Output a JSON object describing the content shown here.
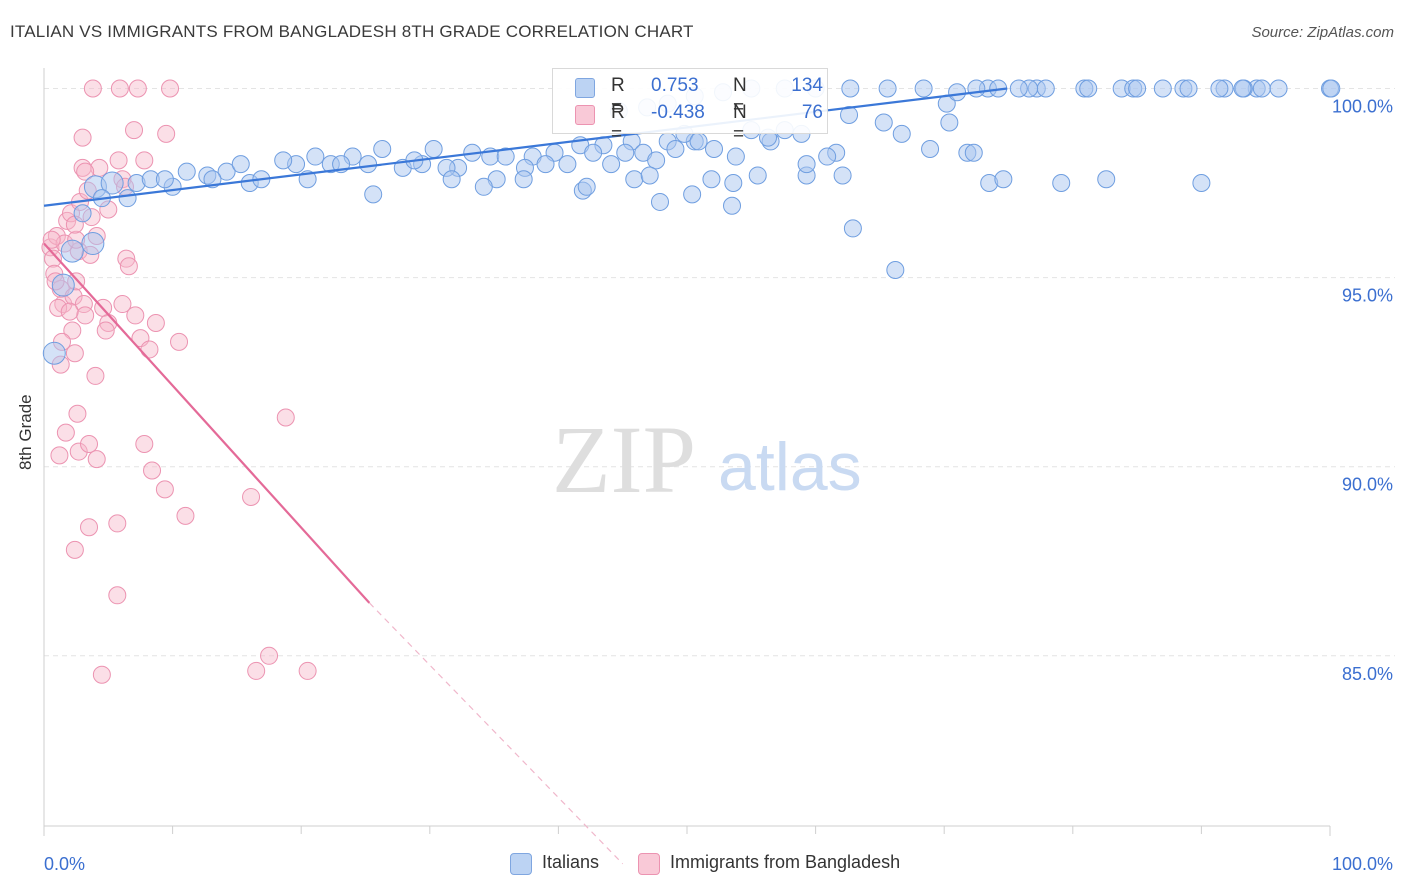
{
  "title": "ITALIAN VS IMMIGRANTS FROM BANGLADESH 8TH GRADE CORRELATION CHART",
  "source": "Source: ZipAtlas.com",
  "watermark": {
    "zip": "ZIP",
    "atlas": "atlas"
  },
  "legend": {
    "rows": [
      {
        "r_label": "R =",
        "r_value": "0.753",
        "n_label": "N =",
        "n_value": "134",
        "color": "#a9c6ef"
      },
      {
        "r_label": "R =",
        "r_value": "-0.438",
        "n_label": "N =",
        "n_value": "76",
        "color": "#f6b8c9"
      }
    ]
  },
  "bottom_legend": {
    "italians": "Italians",
    "bangladesh": "Immigrants from Bangladesh"
  },
  "chart_data": {
    "type": "scatter",
    "title": "ITALIAN VS IMMIGRANTS FROM BANGLADESH 8TH GRADE CORRELATION CHART",
    "xlabel": "",
    "ylabel": "8th Grade",
    "xlim": [
      0,
      100
    ],
    "ylim": [
      80.5,
      100.7
    ],
    "x_tick_labels": [
      "0.0%",
      "100.0%"
    ],
    "y_ticks": [
      85,
      90,
      95,
      100
    ],
    "y_tick_labels": [
      "85.0%",
      "90.0%",
      "95.0%",
      "100.0%"
    ],
    "grid": true,
    "colors": {
      "italians": "#3b78d8",
      "bangladesh": "#e46a98",
      "italians_fill": "#a9c6ef",
      "bangladesh_fill": "#f6b8c9"
    },
    "series": [
      {
        "name": "Italians",
        "trend": {
          "x": [
            0,
            74.9
          ],
          "y": [
            96.9,
            100.0
          ]
        },
        "points": [
          [
            0.8,
            93.0
          ],
          [
            1.5,
            94.8
          ],
          [
            2.2,
            95.7
          ],
          [
            3.8,
            95.9
          ],
          [
            4.0,
            97.4
          ],
          [
            5.3,
            97.5
          ],
          [
            7.2,
            97.5
          ],
          [
            10.0,
            97.4
          ],
          [
            12.7,
            97.7
          ],
          [
            14.2,
            97.8
          ],
          [
            16.0,
            97.5
          ],
          [
            19.6,
            98.0
          ],
          [
            20.5,
            97.6
          ],
          [
            21.1,
            98.2
          ],
          [
            24.0,
            98.2
          ],
          [
            25.2,
            98.0
          ],
          [
            27.9,
            97.9
          ],
          [
            29.4,
            98.0
          ],
          [
            32.2,
            97.9
          ],
          [
            34.7,
            98.2
          ],
          [
            35.9,
            98.2
          ],
          [
            38.0,
            98.2
          ],
          [
            39.7,
            98.3
          ],
          [
            41.7,
            98.5
          ],
          [
            43.5,
            98.5
          ],
          [
            45.7,
            98.6
          ],
          [
            46.6,
            98.3
          ],
          [
            48.5,
            98.6
          ],
          [
            49.1,
            98.4
          ],
          [
            50.6,
            98.6
          ],
          [
            52.1,
            98.4
          ],
          [
            53.8,
            98.2
          ],
          [
            4.5,
            97.1
          ],
          [
            8.3,
            97.6
          ],
          [
            9.4,
            97.6
          ],
          [
            11.1,
            97.8
          ],
          [
            13.1,
            97.6
          ],
          [
            15.3,
            98.0
          ],
          [
            16.9,
            97.6
          ],
          [
            18.6,
            98.1
          ],
          [
            22.3,
            98.0
          ],
          [
            23.1,
            98.0
          ],
          [
            26.3,
            98.4
          ],
          [
            28.8,
            98.1
          ],
          [
            30.3,
            98.4
          ],
          [
            31.3,
            97.9
          ],
          [
            33.3,
            98.3
          ],
          [
            35.2,
            97.6
          ],
          [
            37.4,
            97.9
          ],
          [
            39.0,
            98.0
          ],
          [
            40.7,
            98.0
          ],
          [
            42.7,
            98.3
          ],
          [
            44.1,
            98.0
          ],
          [
            45.2,
            98.3
          ],
          [
            47.6,
            98.1
          ],
          [
            49.8,
            98.8
          ],
          [
            50.9,
            98.6
          ],
          [
            55.0,
            98.9
          ],
          [
            56.5,
            98.6
          ],
          [
            57.6,
            98.9
          ],
          [
            58.9,
            98.8
          ],
          [
            61.6,
            98.3
          ],
          [
            71.8,
            98.3
          ],
          [
            3.0,
            96.7
          ],
          [
            6.5,
            97.1
          ],
          [
            25.6,
            97.2
          ],
          [
            31.7,
            97.6
          ],
          [
            34.2,
            97.4
          ],
          [
            37.3,
            97.6
          ],
          [
            41.9,
            97.3
          ],
          [
            42.2,
            97.4
          ],
          [
            45.9,
            97.6
          ],
          [
            47.1,
            97.7
          ],
          [
            47.9,
            97.0
          ],
          [
            53.6,
            97.5
          ],
          [
            59.3,
            97.7
          ],
          [
            62.1,
            97.7
          ],
          [
            73.5,
            97.5
          ],
          [
            74.6,
            97.6
          ],
          [
            79.1,
            97.5
          ],
          [
            82.6,
            97.6
          ],
          [
            90.0,
            97.5
          ],
          [
            53.5,
            96.9
          ],
          [
            62.9,
            96.3
          ],
          [
            66.2,
            95.2
          ],
          [
            70.2,
            99.6
          ],
          [
            71.0,
            99.9
          ],
          [
            73.4,
            100.0
          ],
          [
            74.2,
            100.0
          ],
          [
            77.2,
            100.0
          ],
          [
            77.9,
            100.0
          ],
          [
            80.9,
            100.0
          ],
          [
            83.8,
            100.0
          ],
          [
            84.7,
            100.0
          ],
          [
            88.6,
            100.0
          ],
          [
            89.0,
            100.0
          ],
          [
            91.8,
            100.0
          ],
          [
            94.3,
            100.0
          ],
          [
            94.7,
            100.0
          ],
          [
            96.0,
            100.0
          ],
          [
            100.0,
            100.0
          ],
          [
            100.1,
            100.0
          ],
          [
            93.3,
            100.0
          ],
          [
            93.2,
            100.0
          ],
          [
            91.4,
            100.0
          ],
          [
            87.0,
            100.0
          ],
          [
            85.0,
            100.0
          ],
          [
            81.2,
            100.0
          ],
          [
            76.6,
            100.0
          ],
          [
            75.8,
            100.0
          ],
          [
            72.5,
            100.0
          ],
          [
            68.4,
            100.0
          ],
          [
            65.6,
            100.0
          ],
          [
            62.7,
            100.0
          ],
          [
            60.0,
            100.0
          ],
          [
            57.6,
            100.0
          ],
          [
            55.0,
            100.0
          ],
          [
            52.8,
            99.9
          ],
          [
            50.6,
            99.8
          ],
          [
            48.5,
            99.6
          ],
          [
            46.9,
            99.5
          ],
          [
            44.7,
            99.4
          ],
          [
            62.6,
            99.3
          ],
          [
            65.3,
            99.1
          ],
          [
            70.4,
            99.1
          ],
          [
            66.7,
            98.8
          ],
          [
            68.9,
            98.4
          ],
          [
            72.3,
            98.3
          ],
          [
            56.3,
            98.7
          ],
          [
            59.3,
            98.0
          ],
          [
            60.9,
            98.2
          ],
          [
            55.5,
            97.7
          ],
          [
            51.9,
            97.6
          ],
          [
            50.4,
            97.2
          ]
        ]
      },
      {
        "name": "Immigrants from Bangladesh",
        "trend": {
          "x": [
            0,
            25.3
          ],
          "y": [
            95.9,
            86.4
          ]
        },
        "trend_dashed": {
          "x": [
            25.3,
            45
          ],
          "y": [
            86.4,
            79.5
          ]
        },
        "points": [
          [
            0.5,
            95.8
          ],
          [
            0.7,
            95.5
          ],
          [
            0.8,
            95.1
          ],
          [
            1.3,
            94.7
          ],
          [
            1.5,
            94.3
          ],
          [
            2.3,
            94.5
          ],
          [
            2.5,
            94.9
          ],
          [
            2.7,
            95.7
          ],
          [
            1.0,
            96.1
          ],
          [
            1.8,
            96.5
          ],
          [
            2.1,
            96.7
          ],
          [
            2.8,
            97.0
          ],
          [
            3.4,
            97.3
          ],
          [
            3.0,
            97.9
          ],
          [
            4.3,
            97.9
          ],
          [
            5.8,
            98.1
          ],
          [
            7.8,
            98.1
          ],
          [
            3.0,
            98.7
          ],
          [
            7.0,
            98.9
          ],
          [
            9.5,
            98.8
          ],
          [
            3.7,
            96.6
          ],
          [
            5.0,
            96.8
          ],
          [
            6.1,
            97.6
          ],
          [
            1.6,
            95.9
          ],
          [
            2.5,
            96.0
          ],
          [
            3.6,
            95.6
          ],
          [
            4.1,
            96.1
          ],
          [
            6.4,
            95.5
          ],
          [
            6.6,
            95.3
          ],
          [
            3.1,
            94.3
          ],
          [
            4.6,
            94.2
          ],
          [
            6.1,
            94.3
          ],
          [
            7.1,
            94.0
          ],
          [
            5.0,
            93.8
          ],
          [
            7.5,
            93.4
          ],
          [
            8.2,
            93.1
          ],
          [
            8.7,
            93.8
          ],
          [
            10.5,
            93.3
          ],
          [
            2.2,
            93.6
          ],
          [
            2.4,
            93.0
          ],
          [
            1.3,
            92.7
          ],
          [
            4.0,
            92.4
          ],
          [
            2.6,
            91.4
          ],
          [
            1.7,
            90.9
          ],
          [
            1.2,
            90.3
          ],
          [
            2.7,
            90.4
          ],
          [
            3.5,
            90.6
          ],
          [
            4.1,
            90.2
          ],
          [
            7.8,
            90.6
          ],
          [
            8.4,
            89.9
          ],
          [
            9.4,
            89.4
          ],
          [
            11.0,
            88.7
          ],
          [
            16.1,
            89.2
          ],
          [
            18.8,
            91.3
          ],
          [
            2.4,
            87.8
          ],
          [
            3.5,
            88.4
          ],
          [
            5.7,
            88.5
          ],
          [
            5.7,
            86.6
          ],
          [
            17.5,
            85.0
          ],
          [
            16.5,
            84.6
          ],
          [
            20.5,
            84.6
          ],
          [
            4.5,
            84.5
          ],
          [
            3.8,
            100.0
          ],
          [
            5.9,
            100.0
          ],
          [
            9.8,
            100.0
          ],
          [
            7.3,
            100.0
          ],
          [
            6.3,
            97.4
          ],
          [
            3.2,
            94.0
          ],
          [
            1.1,
            94.2
          ],
          [
            0.9,
            94.9
          ],
          [
            2.0,
            94.1
          ],
          [
            4.8,
            93.6
          ],
          [
            1.4,
            93.3
          ],
          [
            3.2,
            97.8
          ],
          [
            2.4,
            96.4
          ],
          [
            0.6,
            96.0
          ]
        ]
      }
    ]
  }
}
